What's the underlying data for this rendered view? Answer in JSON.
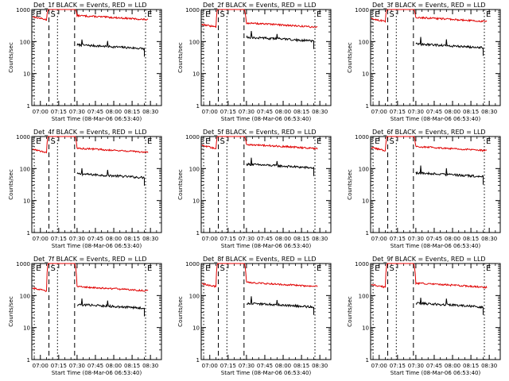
{
  "chart_data": {
    "type": "line",
    "layout": {
      "rows": 3,
      "cols": 3
    },
    "shared": {
      "legend_text": "BLACK = Events, RED = LLD",
      "xlabel": "Start Time (08-Mar-06 06:53:40)",
      "ylabel": "Counts/sec",
      "y_scale": "log",
      "ylim": [
        1,
        1000
      ],
      "y_tick_labels": [
        "1",
        "10",
        "100",
        "1000"
      ],
      "x_range_minutes_from_0700": [
        -7,
        99
      ],
      "x_tick_labels": [
        "07:00",
        "07:15",
        "07:30",
        "07:45",
        "08:00",
        "08:15",
        "08:30"
      ],
      "grid": false,
      "series_colors": {
        "events": "#000000",
        "lld": "#e00000"
      },
      "markers": [
        {
          "label": "E",
          "x_min": -5,
          "style": "dotted"
        },
        {
          "label": "S",
          "x_min": 7,
          "style": "dashed"
        },
        {
          "label": "",
          "x_min": 14,
          "style": "dotted"
        },
        {
          "label": "",
          "x_min": 28,
          "style": "dashed"
        },
        {
          "label": "E",
          "x_min": 86,
          "style": "dotted"
        }
      ]
    },
    "panels": [
      {
        "title": "Det_1f",
        "lld_level": 480,
        "evt_level": 75
      },
      {
        "title": "Det_2f",
        "lld_level": 280,
        "evt_level": 130
      },
      {
        "title": "Det_3f",
        "lld_level": 420,
        "evt_level": 80
      },
      {
        "title": "Det_4f",
        "lld_level": 320,
        "evt_level": 65
      },
      {
        "title": "Det_5f",
        "lld_level": 420,
        "evt_level": 130
      },
      {
        "title": "Det_6f",
        "lld_level": 360,
        "evt_level": 70
      },
      {
        "title": "Det_7f",
        "lld_level": 140,
        "evt_level": 50
      },
      {
        "title": "Det_8f",
        "lld_level": 190,
        "evt_level": 55
      },
      {
        "title": "Det_9f",
        "lld_level": 180,
        "evt_level": 55
      }
    ]
  }
}
